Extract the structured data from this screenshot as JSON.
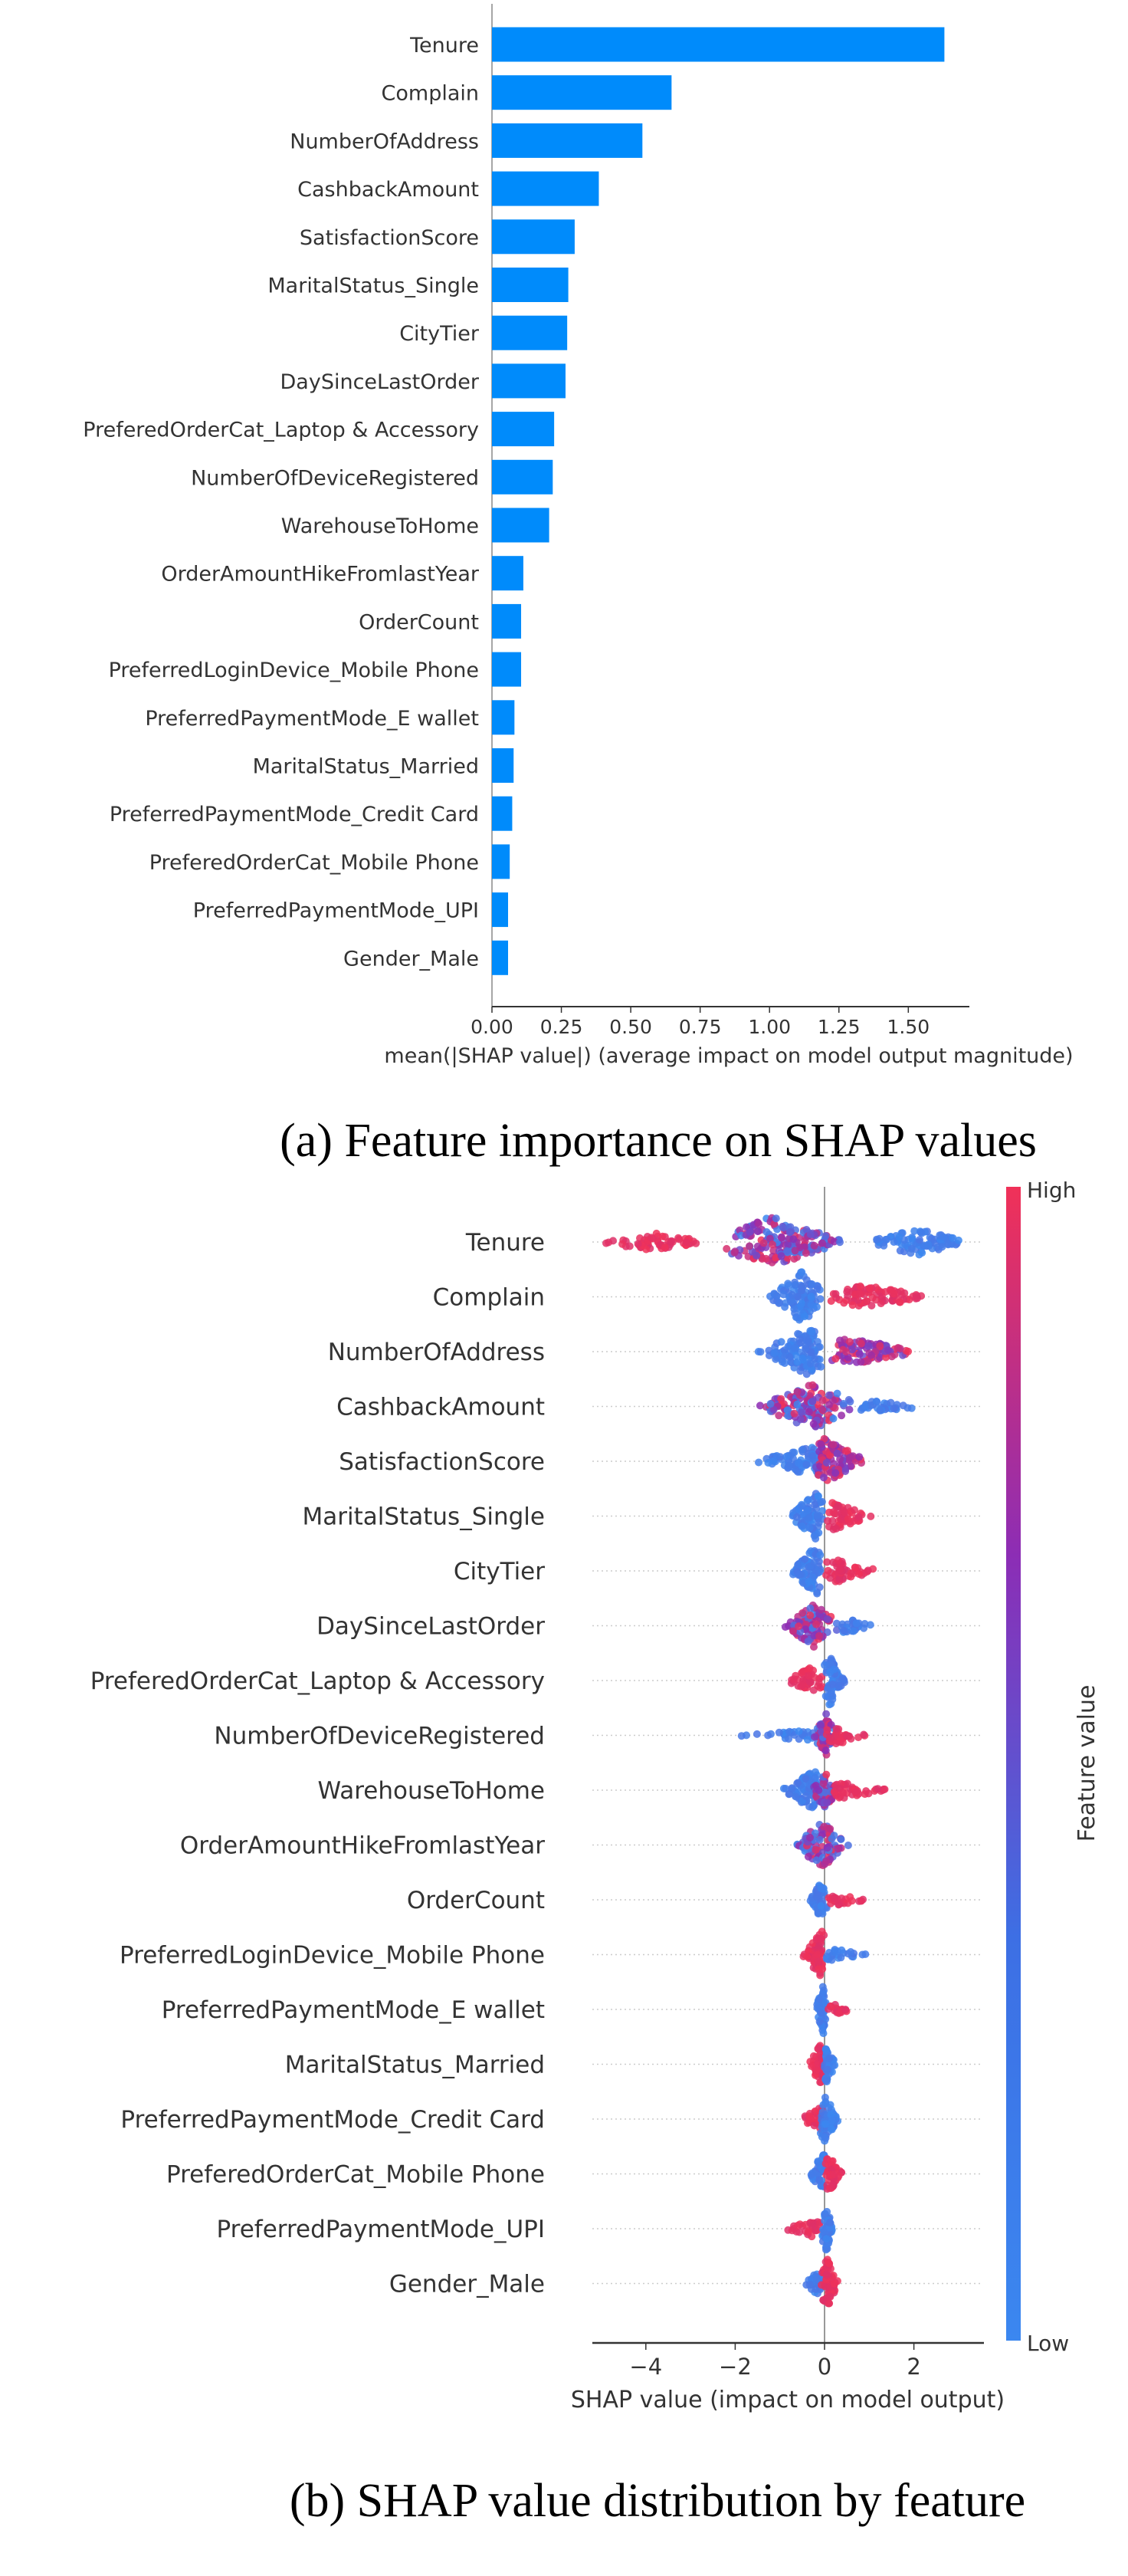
{
  "chart_data": [
    {
      "type": "bar",
      "orientation": "horizontal",
      "categories": [
        "Tenure",
        "Complain",
        "NumberOfAddress",
        "CashbackAmount",
        "SatisfactionScore",
        "MaritalStatus_Single",
        "CityTier",
        "DaySinceLastOrder",
        "PreferedOrderCat_Laptop & Accessory",
        "NumberOfDeviceRegistered",
        "WarehouseToHome",
        "OrderAmountHikeFromlastYear",
        "OrderCount",
        "PreferredLoginDevice_Mobile Phone",
        "PreferredPaymentMode_E wallet",
        "MaritalStatus_Married",
        "PreferredPaymentMode_Credit Card",
        "PreferedOrderCat_Mobile Phone",
        "PreferredPaymentMode_UPI",
        "Gender_Male"
      ],
      "values": [
        1.63,
        0.647,
        0.542,
        0.385,
        0.298,
        0.275,
        0.271,
        0.265,
        0.224,
        0.219,
        0.206,
        0.113,
        0.105,
        0.105,
        0.081,
        0.078,
        0.073,
        0.064,
        0.058,
        0.058
      ],
      "xlabel": "mean(|SHAP value|) (average impact on model output magnitude)",
      "xticks": [
        "0.00",
        "0.25",
        "0.50",
        "0.75",
        "1.00",
        "1.25",
        "1.50"
      ],
      "xlim": [
        0,
        1.72
      ],
      "color": "#008bfb",
      "grid": false,
      "caption": "(a) Feature importance on SHAP values"
    },
    {
      "type": "scatter",
      "subtype": "beeswarm",
      "categories": [
        "Tenure",
        "Complain",
        "NumberOfAddress",
        "CashbackAmount",
        "SatisfactionScore",
        "MaritalStatus_Single",
        "CityTier",
        "DaySinceLastOrder",
        "PreferedOrderCat_Laptop & Accessory",
        "NumberOfDeviceRegistered",
        "WarehouseToHome",
        "OrderAmountHikeFromlastYear",
        "OrderCount",
        "PreferredLoginDevice_Mobile Phone",
        "PreferredPaymentMode_E wallet",
        "MaritalStatus_Married",
        "PreferredPaymentMode_Credit Card",
        "PreferedOrderCat_Mobile Phone",
        "PreferredPaymentMode_UPI",
        "Gender_Male"
      ],
      "distributions": [
        [
          {
            "range": [
              -4.9,
              -2.5
            ],
            "peak": -3.8,
            "density": 0.35,
            "feature_value": "high"
          },
          {
            "range": [
              -2.26,
              0.48
            ],
            "peak": -1.19,
            "density": 1.0,
            "feature_value": "mixed"
          },
          {
            "range": [
              1.05,
              3.22
            ],
            "peak": 2.08,
            "density": 0.55,
            "feature_value": "low"
          }
        ],
        [
          {
            "range": [
              -1.26,
              0
            ],
            "peak": -0.51,
            "density": 1.0,
            "feature_value": "low"
          },
          {
            "range": [
              0,
              2.3
            ],
            "peak": 1.0,
            "density": 0.5,
            "feature_value": "high"
          }
        ],
        [
          {
            "range": [
              -1.5,
              0
            ],
            "peak": -0.37,
            "density": 0.95,
            "feature_value": "low"
          },
          {
            "range": [
              0,
              2.19
            ],
            "peak": 0.6,
            "density": 0.55,
            "feature_value": "mixed-high"
          }
        ],
        [
          {
            "range": [
              -1.54,
              0.66
            ],
            "peak": -0.26,
            "density": 0.9,
            "feature_value": "mixed"
          },
          {
            "range": [
              0.66,
              2.37
            ],
            "peak": 0.9,
            "density": 0.25,
            "feature_value": "low"
          }
        ],
        [
          {
            "range": [
              -1.6,
              0
            ],
            "peak": -0.2,
            "density": 0.6,
            "feature_value": "low"
          },
          {
            "range": [
              -0.2,
              0.98
            ],
            "peak": 0.0,
            "density": 0.9,
            "feature_value": "mixed-high"
          }
        ],
        [
          {
            "range": [
              -0.83,
              0
            ],
            "peak": -0.2,
            "density": 0.9,
            "feature_value": "low"
          },
          {
            "range": [
              0,
              1.07
            ],
            "peak": 0.2,
            "density": 0.55,
            "feature_value": "high"
          }
        ],
        [
          {
            "range": [
              -0.8,
              0
            ],
            "peak": -0.2,
            "density": 0.95,
            "feature_value": "low"
          },
          {
            "range": [
              0,
              1.25
            ],
            "peak": 0.25,
            "density": 0.45,
            "feature_value": "high"
          }
        ],
        [
          {
            "range": [
              -0.9,
              0.3
            ],
            "peak": -0.23,
            "density": 0.85,
            "feature_value": "mixed"
          },
          {
            "range": [
              0.3,
              1.15
            ],
            "peak": 0.5,
            "density": 0.3,
            "feature_value": "low"
          }
        ],
        [
          {
            "range": [
              -0.9,
              0
            ],
            "peak": -0.33,
            "density": 0.5,
            "feature_value": "high"
          },
          {
            "range": [
              0,
              0.45
            ],
            "peak": 0.12,
            "density": 1.0,
            "feature_value": "low"
          }
        ],
        [
          {
            "range": [
              -2.08,
              -0.2
            ],
            "peak": -0.3,
            "density": 0.2,
            "feature_value": "low"
          },
          {
            "range": [
              -0.25,
              0.3
            ],
            "peak": 0.02,
            "density": 0.9,
            "feature_value": "mixed"
          },
          {
            "range": [
              0,
              0.95
            ],
            "peak": 0.3,
            "density": 0.35,
            "feature_value": "high"
          }
        ],
        [
          {
            "range": [
              -0.94,
              0
            ],
            "peak": -0.2,
            "density": 0.85,
            "feature_value": "low"
          },
          {
            "range": [
              -0.3,
              0.3
            ],
            "peak": 0.0,
            "density": 0.8,
            "feature_value": "mixed"
          },
          {
            "range": [
              0,
              1.48
            ],
            "peak": 0.3,
            "density": 0.35,
            "feature_value": "high"
          }
        ],
        [
          {
            "range": [
              -0.69,
              0.59
            ],
            "peak": -0.05,
            "density": 0.9,
            "feature_value": "mixed"
          }
        ],
        [
          {
            "range": [
              -0.33,
              0.05
            ],
            "peak": -0.05,
            "density": 0.9,
            "feature_value": "low"
          },
          {
            "range": [
              0,
              1.09
            ],
            "peak": 0.1,
            "density": 0.25,
            "feature_value": "high"
          }
        ],
        [
          {
            "range": [
              -0.49,
              0.02
            ],
            "peak": -0.05,
            "density": 0.95,
            "feature_value": "high"
          },
          {
            "range": [
              0,
              1.1
            ],
            "peak": 0.1,
            "density": 0.25,
            "feature_value": "low"
          }
        ],
        [
          {
            "range": [
              -0.2,
              0.05
            ],
            "peak": -0.03,
            "density": 1.0,
            "feature_value": "low"
          },
          {
            "range": [
              0.05,
              0.8
            ],
            "peak": 0.2,
            "density": 0.2,
            "feature_value": "high"
          }
        ],
        [
          {
            "range": [
              -0.37,
              0.02
            ],
            "peak": -0.08,
            "density": 0.8,
            "feature_value": "high"
          },
          {
            "range": [
              -0.02,
              0.27
            ],
            "peak": 0.05,
            "density": 0.7,
            "feature_value": "low"
          }
        ],
        [
          {
            "range": [
              -0.58,
              0.0
            ],
            "peak": -0.05,
            "density": 0.5,
            "feature_value": "high"
          },
          {
            "range": [
              -0.1,
              0.32
            ],
            "peak": 0.02,
            "density": 0.95,
            "feature_value": "low"
          }
        ],
        [
          {
            "range": [
              -0.35,
              0.05
            ],
            "peak": -0.03,
            "density": 0.8,
            "feature_value": "low"
          },
          {
            "range": [
              0.0,
              0.41
            ],
            "peak": 0.1,
            "density": 0.7,
            "feature_value": "high"
          }
        ],
        [
          {
            "range": [
              -0.94,
              -0.05
            ],
            "peak": -0.2,
            "density": 0.35,
            "feature_value": "high"
          },
          {
            "range": [
              -0.05,
              0.18
            ],
            "peak": 0.03,
            "density": 1.0,
            "feature_value": "low"
          }
        ],
        [
          {
            "range": [
              -0.48,
              0.0
            ],
            "peak": -0.15,
            "density": 0.45,
            "feature_value": "low"
          },
          {
            "range": [
              -0.1,
              0.33
            ],
            "peak": 0.05,
            "density": 1.0,
            "feature_value": "high"
          }
        ]
      ],
      "xlabel": "SHAP value (impact on model output)",
      "xticks": [
        "−4",
        "−2",
        "0",
        "2"
      ],
      "xtick_values": [
        -4,
        -2,
        0,
        2
      ],
      "xlim": [
        -5.19,
        3.57
      ],
      "colorbar": {
        "label": "Feature value",
        "high_label": "High",
        "low_label": "Low",
        "high_color": "#f03158",
        "low_color": "#3b87f0"
      },
      "grid": false,
      "caption": "(b) SHAP value distribution by feature"
    }
  ]
}
